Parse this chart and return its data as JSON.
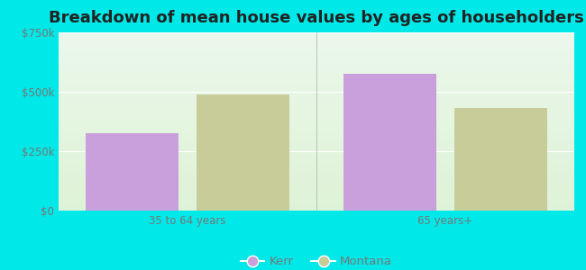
{
  "title": "Breakdown of mean house values by ages of householders",
  "categories": [
    "35 to 64 years",
    "65 years+"
  ],
  "kerr_values": [
    325000,
    575000
  ],
  "montana_values": [
    490000,
    430000
  ],
  "kerr_color": "#c9a0dc",
  "montana_color": "#c8cc99",
  "ylim": [
    0,
    750000
  ],
  "yticks": [
    0,
    250000,
    500000,
    750000
  ],
  "ytick_labels": [
    "$0",
    "$250k",
    "$500k",
    "$750k"
  ],
  "background_color": "#00e8e8",
  "legend_kerr": "Kerr",
  "legend_montana": "Montana",
  "title_fontsize": 13,
  "tick_fontsize": 8.5,
  "legend_fontsize": 9.5,
  "bar_width": 0.18,
  "tick_color": "#777777"
}
